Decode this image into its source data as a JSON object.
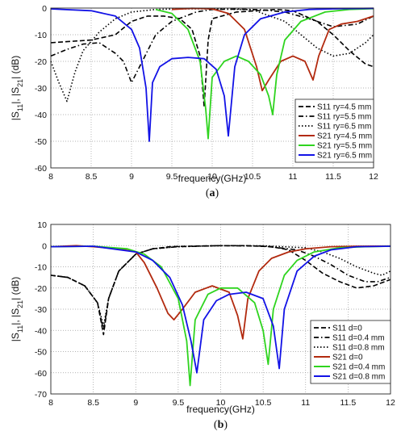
{
  "chart_data": [
    {
      "type": "line",
      "caption": "(a)",
      "caption_letter": "a",
      "xlabel": "frequency(GHz)",
      "ylabel_parts": [
        "|S",
        "11",
        "|, |S",
        "21",
        "| (dB)"
      ],
      "xlim": [
        8,
        12
      ],
      "ylim": [
        -60,
        0
      ],
      "xticks": [
        "8",
        "8.5",
        "9",
        "9.5",
        "10",
        "10.5",
        "11",
        "11.5",
        "12"
      ],
      "yticks": [
        "0",
        "-10",
        "-20",
        "-30",
        "-40",
        "-50",
        "-60"
      ],
      "grid": true,
      "legend_placement": "bottom-right",
      "series": [
        {
          "name": "S11 ry=4.5 mm",
          "color": "#000000",
          "dash": "dash",
          "x": [
            8,
            8.5,
            8.8,
            9,
            9.2,
            9.4,
            9.6,
            9.75,
            9.85,
            9.9,
            9.95,
            10,
            10.3,
            10.8,
            11,
            11.3,
            11.5,
            11.7,
            11.9,
            12
          ],
          "y": [
            -13,
            -12,
            -10,
            -5,
            -3,
            -3,
            -4,
            -8,
            -18,
            -37,
            -12,
            -4,
            -1.5,
            -0.5,
            -1,
            -5,
            -10,
            -16,
            -21,
            -22
          ]
        },
        {
          "name": "S11 ry=5.5 mm",
          "color": "#000000",
          "dash": "dashdot",
          "x": [
            8,
            8.2,
            8.4,
            8.6,
            8.8,
            8.9,
            9.0,
            9.1,
            9.3,
            9.5,
            9.8,
            10,
            10.3,
            10.6,
            10.9,
            11.2,
            11.5,
            11.8,
            12
          ],
          "y": [
            -18,
            -15.5,
            -13.5,
            -13,
            -17,
            -20,
            -28,
            -22,
            -10,
            -5,
            -1.5,
            -0.5,
            -0.4,
            -0.6,
            -1.5,
            -4,
            -7,
            -6,
            -3
          ]
        },
        {
          "name": "S11 ry=6.5 mm",
          "color": "#000000",
          "dash": "dot",
          "x": [
            8,
            8.1,
            8.2,
            8.3,
            8.4,
            8.6,
            8.8,
            9,
            9.3,
            9.6,
            10,
            10.5,
            10.9,
            11.1,
            11.3,
            11.5,
            11.7,
            11.9,
            12
          ],
          "y": [
            -20,
            -28,
            -35,
            -24,
            -16,
            -9,
            -4,
            -1.5,
            -0.5,
            -0.3,
            -0.3,
            -0.6,
            -5,
            -10,
            -15,
            -18,
            -17,
            -13,
            -10
          ]
        },
        {
          "name": "S21 ry=4.5 mm",
          "color": "#b22a0f",
          "dash": "solid",
          "x": [
            9.5,
            9.75,
            10,
            10.2,
            10.4,
            10.55,
            10.62,
            10.7,
            10.85,
            11,
            11.15,
            11.25,
            11.32,
            11.45,
            11.6,
            11.8,
            12
          ],
          "y": [
            -0.5,
            -0.1,
            -0.3,
            -2,
            -8,
            -22,
            -31,
            -27,
            -20,
            -18,
            -20,
            -27,
            -18,
            -8,
            -6,
            -5,
            -3
          ]
        },
        {
          "name": "S21 ry=5.5 mm",
          "color": "#2fd41f",
          "dash": "solid",
          "x": [
            9.3,
            9.5,
            9.7,
            9.85,
            9.92,
            9.95,
            10,
            10.15,
            10.3,
            10.45,
            10.6,
            10.7,
            10.75,
            10.8,
            10.9,
            11.1,
            11.4,
            11.7,
            12
          ],
          "y": [
            -0.5,
            -2,
            -8,
            -20,
            -38,
            -49,
            -26,
            -20,
            -18,
            -20,
            -25,
            -33,
            -40,
            -25,
            -12,
            -5,
            -1.5,
            -0.5,
            -0.2
          ]
        },
        {
          "name": "S21 ry=6.5 mm",
          "color": "#1212e6",
          "dash": "solid",
          "x": [
            8,
            8.5,
            8.8,
            9,
            9.1,
            9.18,
            9.22,
            9.26,
            9.35,
            9.5,
            9.7,
            9.9,
            10.05,
            10.15,
            10.2,
            10.28,
            10.4,
            10.6,
            10.9,
            11.2,
            11.6,
            12
          ],
          "y": [
            -0.3,
            -1,
            -3,
            -8,
            -15,
            -30,
            -50,
            -28,
            -22,
            -19,
            -18.5,
            -19,
            -23,
            -33,
            -48,
            -22,
            -10,
            -4,
            -1.5,
            -0.5,
            -0.2,
            -0.1
          ]
        }
      ]
    },
    {
      "type": "line",
      "caption": "(b)",
      "caption_letter": "b",
      "xlabel": "frequency(GHz)",
      "ylabel_parts": [
        "|S",
        "11",
        "|, |S",
        "21",
        "| (dB)"
      ],
      "xlim": [
        8,
        12
      ],
      "ylim": [
        -70,
        10
      ],
      "xticks": [
        "8",
        "8.5",
        "9",
        "9.5",
        "10",
        "10.5",
        "11",
        "11.5",
        "12"
      ],
      "yticks": [
        "10",
        "0",
        "-10",
        "-20",
        "-30",
        "-40",
        "-50",
        "-60",
        "-70"
      ],
      "grid": true,
      "legend_placement": "bottom-right",
      "series": [
        {
          "name": "S11 d=0",
          "color": "#000000",
          "dash": "dash",
          "x": [
            8,
            8.2,
            8.4,
            8.55,
            8.62,
            8.68,
            8.8,
            9.0,
            9.2,
            9.4,
            9.7,
            10,
            10.3,
            10.6,
            10.8,
            11.0,
            11.2,
            11.4,
            11.6,
            11.8,
            12
          ],
          "y": [
            -14,
            -15,
            -19,
            -27,
            -42,
            -25,
            -12,
            -4,
            -1.5,
            -0.5,
            -0.2,
            0,
            0,
            -0.5,
            -2,
            -7,
            -13,
            -17,
            -20,
            -19,
            -16
          ]
        },
        {
          "name": "S11 d=0.4 mm",
          "color": "#000000",
          "dash": "dashdot",
          "x": [
            8,
            8.2,
            8.4,
            8.55,
            8.62,
            8.68,
            8.8,
            9.0,
            9.2,
            9.5,
            9.8,
            10,
            10.5,
            10.9,
            11.1,
            11.3,
            11.5,
            11.7,
            11.85,
            12
          ],
          "y": [
            -14,
            -15,
            -19,
            -27,
            -40,
            -25,
            -12,
            -4,
            -1.5,
            -0.5,
            -0.2,
            0,
            -0.2,
            -2,
            -5,
            -9,
            -14,
            -17,
            -17,
            -15
          ]
        },
        {
          "name": "S11 d=0.8 mm",
          "color": "#000000",
          "dash": "dot",
          "x": [
            8,
            8.2,
            8.4,
            8.55,
            8.62,
            8.68,
            8.8,
            9.0,
            9.2,
            9.5,
            9.8,
            10,
            10.5,
            11.0,
            11.2,
            11.4,
            11.6,
            11.8,
            11.9,
            12
          ],
          "y": [
            -14,
            -15,
            -19,
            -27,
            -38,
            -25,
            -12,
            -4,
            -1.5,
            -0.5,
            -0.2,
            0,
            -0.1,
            -1,
            -3,
            -6,
            -10,
            -13,
            -14,
            -12
          ]
        },
        {
          "name": "S21 d=0",
          "color": "#b22a0f",
          "dash": "solid",
          "x": [
            8,
            8.3,
            8.5,
            8.8,
            9.0,
            9.1,
            9.25,
            9.38,
            9.45,
            9.55,
            9.7,
            9.9,
            10.1,
            10.2,
            10.26,
            10.32,
            10.45,
            10.6,
            10.8,
            11,
            11.3,
            11.6,
            12
          ],
          "y": [
            -0.5,
            0,
            -0.5,
            -1.5,
            -3,
            -8,
            -20,
            -32,
            -35,
            -30,
            -22,
            -19,
            -22,
            -33,
            -44,
            -25,
            -12,
            -6,
            -3,
            -1.5,
            -0.5,
            -0.3,
            -0.2
          ]
        },
        {
          "name": "S21 d=0.4 mm",
          "color": "#2fd41f",
          "dash": "solid",
          "x": [
            8,
            8.5,
            8.9,
            9.1,
            9.3,
            9.5,
            9.6,
            9.64,
            9.7,
            9.85,
            10.0,
            10.2,
            10.4,
            10.5,
            10.56,
            10.62,
            10.75,
            10.9,
            11.1,
            11.4,
            11.7,
            12
          ],
          "y": [
            -0.5,
            -0.3,
            -1.5,
            -4,
            -10,
            -25,
            -45,
            -66,
            -35,
            -23,
            -20,
            -20,
            -27,
            -40,
            -56,
            -30,
            -14,
            -7,
            -3,
            -1,
            -0.5,
            -0.3
          ]
        },
        {
          "name": "S21 d=0.8 mm",
          "color": "#1212e6",
          "dash": "solid",
          "x": [
            8,
            8.5,
            9.0,
            9.2,
            9.4,
            9.55,
            9.65,
            9.72,
            9.8,
            9.95,
            10.1,
            10.3,
            10.5,
            10.62,
            10.69,
            10.75,
            10.9,
            11.1,
            11.3,
            11.6,
            12
          ],
          "y": [
            -0.5,
            -0.3,
            -3,
            -7,
            -15,
            -28,
            -45,
            -60,
            -35,
            -26,
            -23,
            -22,
            -25,
            -38,
            -58,
            -30,
            -12,
            -5,
            -2,
            -0.5,
            -0.3
          ]
        }
      ]
    }
  ]
}
